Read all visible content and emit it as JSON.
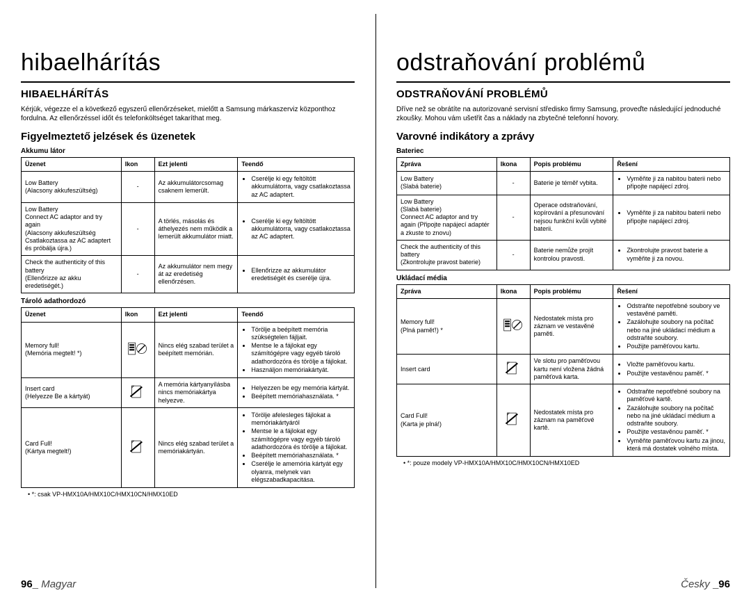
{
  "left": {
    "h1": "hibaelhárítás",
    "h2": "HIBAELHÁRÍTÁS",
    "intro": "Kérjük, végezze el a következő egyszerű ellenőrzéseket, mielőtt a Samsung márkaszerviz központhoz fordulna. Az ellenőrzéssel időt és telefonköltséget takaríthat meg.",
    "h3": "Figyelmeztető jelzések és üzenetek",
    "tbl1_label": "Akkumu látor",
    "tbl1_headers": [
      "Üzenet",
      "Ikon",
      "Ezt jelenti",
      "Teendő"
    ],
    "tbl1_rows": [
      {
        "msg": "Low Battery\n(Alacsony akkufeszültség)",
        "icon": "-",
        "desc": "Az akkumulátorcsomag csaknem lemerült.",
        "act": [
          "Cserélje ki egy feltöltött akkumulátorra, vagy csatlakoztassa az AC adaptert."
        ]
      },
      {
        "msg": "Low Battery\nConnect AC adaptor and try again\n(Alacsony akkufeszültség Csatlakoztassa az AC adaptert és próbálja újra.)",
        "icon": "-",
        "desc": "A törlés, másolás és áthelyezés nem működik a lemerült akkumulátor miatt.",
        "act": [
          "Cserélje ki egy feltöltött akkumulátorra, vagy csatlakoztassa az AC adaptert."
        ]
      },
      {
        "msg": "Check the authenticity of this battery\n(Ellenőrizze az akku eredetiségét.)",
        "icon": "-",
        "desc": "Az akkumulátor nem megy át az eredetiség ellenőrzésen.",
        "act": [
          "Ellenőrizze az akkumulátor eredetiségét és cserélje újra."
        ]
      }
    ],
    "tbl2_label": "Tároló adathordozó",
    "tbl2_headers": [
      "Üzenet",
      "Ikon",
      "Ezt jelenti",
      "Teendő"
    ],
    "tbl2_rows": [
      {
        "msg": "Memory full!\n(Memória megtelt! *)",
        "icon": "mem",
        "desc": "Nincs elég szabad terület a beépített memórián.",
        "act": [
          "Törölje a beépített memória szükségtelen fájljait.",
          "Mentse le a fájlokat egy számítógépre vagy egyéb tároló adathordozóra és törölje a fájlokat.",
          "Használjon memóriakártyát."
        ]
      },
      {
        "msg": "Insert card\n(Helyezze Be a kártyát)",
        "icon": "card",
        "desc": "A memória kártyanyílásba nincs memóriakártya helyezve.",
        "act": [
          "Helyezzen be egy memória kártyát.",
          "Beépített memóriahasználata. *"
        ]
      },
      {
        "msg": "Card Full!\n(Kártya megtelt!)",
        "icon": "card",
        "desc": "Nincs elég szabad terület a memóriakártyán.",
        "act": [
          "Törölje afelesleges fájlokat a memóriakártyáról",
          "Mentse le a fájlokat egy számítógépre vagy egyéb tároló adathordozóra és törölje a fájlokat.",
          "Beépített memóriahasználata. *",
          "Cserélje le amemória kártyát egy olyanra, melynek van elégszabadkapacitása."
        ]
      }
    ],
    "footnote": "*: csak VP-HMX10A/HMX10C/HMX10CN/HMX10ED",
    "page_num": "96_",
    "page_lang": "Magyar"
  },
  "right": {
    "h1": "odstraňování problémů",
    "h2": "ODSTRAŇOVÁNÍ PROBLÉMŮ",
    "intro": "Dříve než se obrátíte na autorizované servisní středisko firmy Samsung, proveďte následující jednoduché zkoušky. Mohou vám ušetřit čas a náklady na zbytečné telefonní hovory.",
    "h3": "Varovné indikátory a zprávy",
    "tbl1_label": "Bateriec",
    "tbl1_headers": [
      "Zpráva",
      "Ikona",
      "Popis problému",
      "Řešení"
    ],
    "tbl1_rows": [
      {
        "msg": "Low Battery\n(Slabá baterie)",
        "icon": "-",
        "desc": "Baterie je téměř vybita.",
        "act": [
          "Vyměňte ji za nabitou baterii nebo připojte napájecí zdroj."
        ]
      },
      {
        "msg": "Low Battery\n(Slabá baterie)\nConnect AC adaptor and try again (Připojte napájecí adaptér a zkuste to znovu)",
        "icon": "-",
        "desc": "Operace odstraňování, kopírování a přesunování nejsou funkční kvůli vybité baterii.",
        "act": [
          "Vyměňte ji za nabitou baterii nebo připojte napájecí zdroj."
        ]
      },
      {
        "msg": "Check the authenticity of this battery\n(Zkontrolujte pravost baterie)",
        "icon": "-",
        "desc": "Baterie nemůže projít kontrolou pravosti.",
        "act": [
          "Zkontrolujte pravost baterie a vyměňte ji za novou."
        ]
      }
    ],
    "tbl2_label": "Ukládací média",
    "tbl2_headers": [
      "Zpráva",
      "Ikona",
      "Popis problému",
      "Řešení"
    ],
    "tbl2_rows": [
      {
        "msg": "Memory full!\n(Plná paměť!) *",
        "icon": "mem",
        "desc": "Nedostatek místa pro záznam ve vestavěné paměti.",
        "act": [
          "Odstraňte nepotřebné soubory ve vestavěné paměti.",
          "Zazálohujte soubory na počítač nebo na jiné ukládací médium a odstraňte soubory.",
          "Použijte paměťovou kartu."
        ]
      },
      {
        "msg": "Insert card",
        "icon": "card",
        "desc": "Ve slotu pro paměťovou kartu není vložena žádná paměťová karta.",
        "act": [
          "Vložte paměťovou kartu.",
          "Použijte vestavěnou paměť. *"
        ]
      },
      {
        "msg": "Card Full!\n(Karta je plná!)",
        "icon": "card",
        "desc": "Nedostatek místa pro záznam na paměťové kartě.",
        "act": [
          "Odstraňte nepotřebné soubory na paměťové kartě.",
          "Zazálohujte soubory na počítač nebo na jiné ukládací médium a odstraňte soubory.",
          "Použijte vestavěnou paměť. *",
          "Vyměňte paměťovou kartu za jinou, která má dostatek volného místa."
        ]
      }
    ],
    "footnote": "*: pouze modely VP-HMX10A/HMX10C/HMX10CN/HMX10ED",
    "page_num": "_96",
    "page_lang": "Česky"
  },
  "icons": {
    "mem": "<svg viewBox='0 0 40 30'><rect x='1' y='3' width='14' height='24' fill='none' stroke='#000' stroke-width='1'/><rect x='3' y='6' width='10' height='3' fill='#000'/><rect x='3' y='11' width='10' height='3' fill='#000'/><rect x='3' y='16' width='10' height='3' fill='#000'/><circle cx='28' cy='15' r='10' fill='none' stroke='#000' stroke-width='1'/><line x1='21' y1='22' x2='35' y2='8' stroke='#000' stroke-width='2'/></svg>",
    "card": "<svg viewBox='0 0 40 30'><rect x='8' y='3' width='18' height='24' fill='none' stroke='#000' stroke-width='1'/><polygon points='8,3 12,3 8,7' fill='#fff' stroke='#000'/><line x1='5' y1='25' x2='29' y2='5' stroke='#000' stroke-width='3'/></svg>"
  },
  "colwidths": [
    "30%",
    "10%",
    "25%",
    "35%"
  ]
}
